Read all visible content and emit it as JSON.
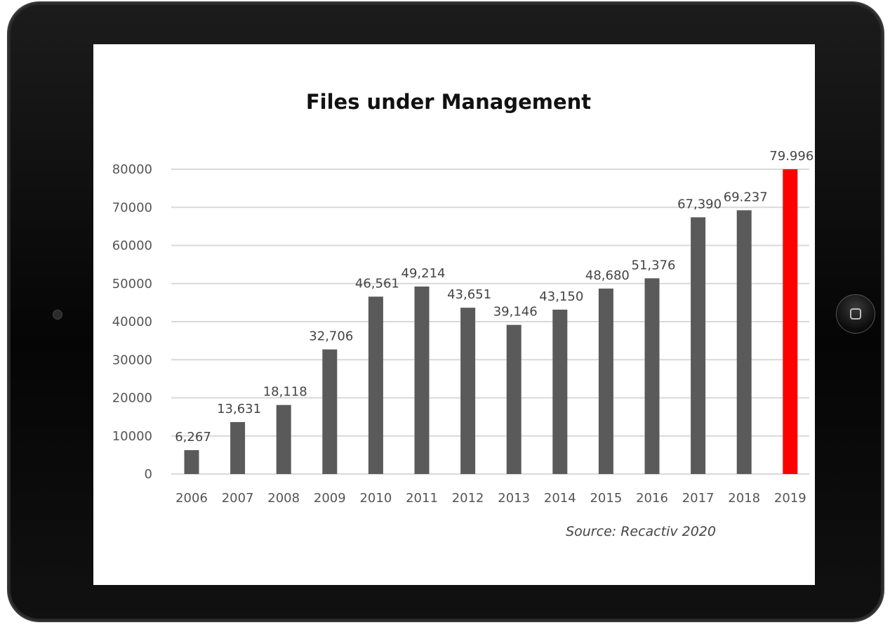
{
  "chart_data": {
    "type": "bar",
    "title": "Files under Management",
    "categories": [
      "2006",
      "2007",
      "2008",
      "2009",
      "2010",
      "2011",
      "2012",
      "2013",
      "2014",
      "2015",
      "2016",
      "2017",
      "2018",
      "2019"
    ],
    "values": [
      6267,
      13631,
      18118,
      32706,
      46561,
      49214,
      43651,
      39146,
      43150,
      48680,
      51376,
      67390,
      69237,
      79996
    ],
    "data_labels": [
      "6,267",
      "13,631",
      "18,118",
      "32,706",
      "46,561",
      "49,214",
      "43,651",
      "39,146",
      "43,150",
      "48,680",
      "51,376",
      "67,390",
      "69.237",
      "79.996"
    ],
    "highlight_index": 13,
    "yticks": [
      0,
      10000,
      20000,
      30000,
      40000,
      50000,
      60000,
      70000,
      80000
    ],
    "ylim": [
      0,
      80000
    ],
    "grid": true,
    "xlabel": "",
    "ylabel": "",
    "source": "Source: Recactiv 2020"
  },
  "colors": {
    "bar": "#5a5a5a",
    "highlight": "#ff0000",
    "grid": "#d9d9d9"
  },
  "device": {
    "home_icon": "home-button-icon",
    "camera_icon": "camera-icon"
  }
}
